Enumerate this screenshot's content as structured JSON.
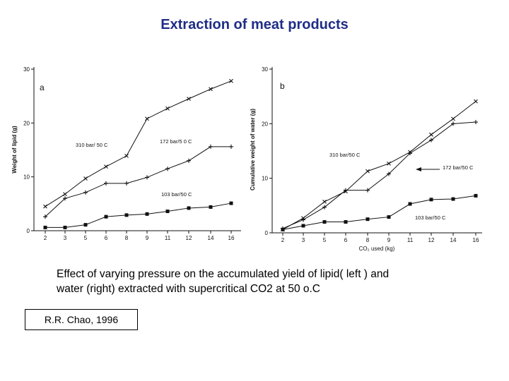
{
  "page": {
    "title": "Extraction of meat products",
    "caption_lines": [
      "Effect of varying pressure on the accumulated yield of lipid( left ) and",
      "water (right)  extracted with supercritical CO2 at 50 o.C"
    ],
    "citation": "R.R. Chao, 1996"
  },
  "colors": {
    "title": "#1f2d86",
    "ink": "#111111",
    "background": "#ffffff"
  },
  "chart_data": [
    {
      "type": "line",
      "panel_label": "a",
      "xlabel": "",
      "ylabel": "Weight of lipid (g)",
      "categories": [
        "2",
        "3",
        "5",
        "6",
        "8",
        "9",
        "11",
        "12",
        "14",
        "16"
      ],
      "ylim": [
        0,
        30
      ],
      "yticks": [
        0,
        10,
        20,
        30
      ],
      "grid": false,
      "series": [
        {
          "name": "310 bar/ 50 C",
          "marker": "x",
          "values": [
            4.5,
            6.8,
            9.7,
            11.9,
            13.9,
            20.8,
            22.7,
            24.5,
            26.3,
            27.8
          ]
        },
        {
          "name": "172 bar/5 0 C",
          "marker": "+",
          "values": [
            2.6,
            6.0,
            7.1,
            8.8,
            8.8,
            9.9,
            11.5,
            13.0,
            15.6,
            15.6
          ]
        },
        {
          "name": "103 bar/50 C",
          "marker": "square",
          "values": [
            0.6,
            0.6,
            1.1,
            2.6,
            2.9,
            3.1,
            3.6,
            4.2,
            4.4,
            5.1
          ]
        }
      ],
      "annotations": [
        {
          "text": "310 bar/ 50 C",
          "near_series": 0
        },
        {
          "text": "172 bar/5 0 C",
          "near_series": 1
        },
        {
          "text": "103 bar/50 C",
          "near_series": 2
        }
      ]
    },
    {
      "type": "line",
      "panel_label": "b",
      "xlabel": "CO₂ used (kg)",
      "ylabel": "Cumulative weight of water (g)",
      "categories": [
        "2",
        "3",
        "5",
        "6",
        "8",
        "9",
        "11",
        "12",
        "14",
        "16"
      ],
      "ylim": [
        0,
        30
      ],
      "yticks": [
        0,
        10,
        20,
        30
      ],
      "grid": false,
      "series": [
        {
          "name": "310 bar/50 C",
          "marker": "x",
          "values": [
            0.6,
            2.7,
            5.7,
            7.6,
            11.3,
            12.7,
            14.8,
            18.0,
            20.9,
            24.1
          ]
        },
        {
          "name": "172 bar/50 C",
          "marker": "+",
          "values": [
            0.8,
            2.4,
            4.7,
            7.8,
            7.8,
            10.8,
            14.6,
            17.0,
            20.0,
            20.3
          ]
        },
        {
          "name": "103 bar/50 C",
          "marker": "square",
          "values": [
            0.6,
            1.3,
            2.0,
            2.0,
            2.5,
            2.9,
            5.3,
            6.1,
            6.2,
            6.8
          ]
        }
      ],
      "annotations": [
        {
          "text": "310  bar/50 C",
          "near_series": 0
        },
        {
          "text": "172 bar/50 C",
          "near_series": 1,
          "arrow": true
        },
        {
          "text": "103 bar/50 C",
          "near_series": 2
        }
      ]
    }
  ]
}
